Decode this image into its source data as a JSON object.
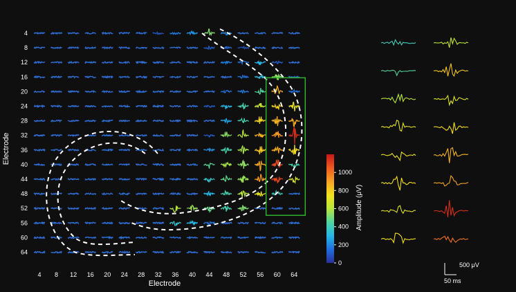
{
  "chart_data": {
    "type": "heatmap",
    "title": "",
    "xlabel": "Electrode",
    "ylabel": "Electrode",
    "x_ticks": [
      "4",
      "8",
      "12",
      "16",
      "20",
      "24",
      "28",
      "32",
      "36",
      "40",
      "44",
      "48",
      "52",
      "56",
      "60",
      "64"
    ],
    "y_ticks": [
      "4",
      "8",
      "12",
      "16",
      "20",
      "24",
      "28",
      "32",
      "36",
      "40",
      "44",
      "48",
      "52",
      "56",
      "60",
      "64"
    ],
    "grid_cols": 16,
    "grid_rows": 16,
    "colorbar": {
      "label": "Amplitude (μV)",
      "ticks": [
        "0",
        "200",
        "400",
        "600",
        "800",
        "1000"
      ],
      "range": [
        0,
        1200
      ],
      "colors": [
        "#2a2f9a",
        "#1f6fe0",
        "#25b7e8",
        "#4fd6a0",
        "#b7e63a",
        "#f2e21e",
        "#f7a323",
        "#ee5a1f",
        "#c51818"
      ]
    },
    "amplitudes": [
      [
        0,
        0,
        0,
        0,
        0,
        0,
        0,
        100,
        180,
        230,
        520,
        200,
        0,
        0,
        0,
        0
      ],
      [
        0,
        0,
        0,
        0,
        0,
        0,
        0,
        0,
        0,
        0,
        120,
        140,
        80,
        0,
        0,
        0
      ],
      [
        0,
        0,
        0,
        0,
        0,
        0,
        0,
        0,
        0,
        0,
        0,
        180,
        160,
        300,
        120,
        0
      ],
      [
        0,
        0,
        0,
        0,
        0,
        0,
        0,
        0,
        0,
        0,
        0,
        0,
        160,
        330,
        540,
        0
      ],
      [
        0,
        0,
        0,
        0,
        0,
        0,
        0,
        0,
        0,
        0,
        0,
        160,
        180,
        450,
        860,
        160
      ],
      [
        0,
        0,
        0,
        0,
        0,
        0,
        0,
        0,
        0,
        0,
        120,
        300,
        420,
        640,
        780,
        720
      ],
      [
        0,
        0,
        0,
        0,
        0,
        0,
        0,
        0,
        0,
        0,
        0,
        260,
        420,
        780,
        860,
        880
      ],
      [
        0,
        0,
        0,
        0,
        0,
        0,
        0,
        0,
        0,
        0,
        120,
        540,
        600,
        860,
        920,
        1150
      ],
      [
        0,
        0,
        0,
        0,
        0,
        0,
        0,
        0,
        0,
        0,
        220,
        420,
        580,
        820,
        880,
        760
      ],
      [
        0,
        0,
        0,
        0,
        0,
        0,
        0,
        0,
        0,
        0,
        460,
        580,
        540,
        880,
        1080,
        420
      ],
      [
        0,
        0,
        0,
        0,
        0,
        0,
        0,
        0,
        0,
        0,
        360,
        480,
        560,
        920,
        1100,
        680
      ],
      [
        0,
        0,
        0,
        0,
        0,
        0,
        0,
        0,
        0,
        0,
        300,
        420,
        600,
        720,
        380,
        0
      ],
      [
        0,
        0,
        0,
        0,
        0,
        0,
        0,
        0,
        600,
        560,
        480,
        420,
        520,
        0,
        0,
        0
      ],
      [
        0,
        0,
        0,
        0,
        0,
        0,
        0,
        0,
        360,
        300,
        160,
        0,
        0,
        0,
        0,
        0
      ],
      [
        0,
        0,
        0,
        0,
        0,
        0,
        0,
        0,
        0,
        0,
        0,
        0,
        0,
        0,
        0,
        0
      ],
      [
        0,
        0,
        0,
        0,
        0,
        0,
        0,
        0,
        0,
        0,
        0,
        0,
        0,
        0,
        0,
        0
      ]
    ],
    "highlight_box": {
      "col_start": 14,
      "col_end": 15,
      "row_start": 4,
      "row_end": 12,
      "color": "#2fb02f"
    },
    "example_traces": {
      "left_column_amplitudes": [
        400,
        450,
        600,
        720,
        740,
        760,
        700,
        760
      ],
      "right_column_amplitudes": [
        620,
        820,
        700,
        760,
        860,
        900,
        1150,
        1000
      ]
    },
    "scale_bar": {
      "amplitude": "500 μV",
      "time": "50 ms"
    }
  }
}
